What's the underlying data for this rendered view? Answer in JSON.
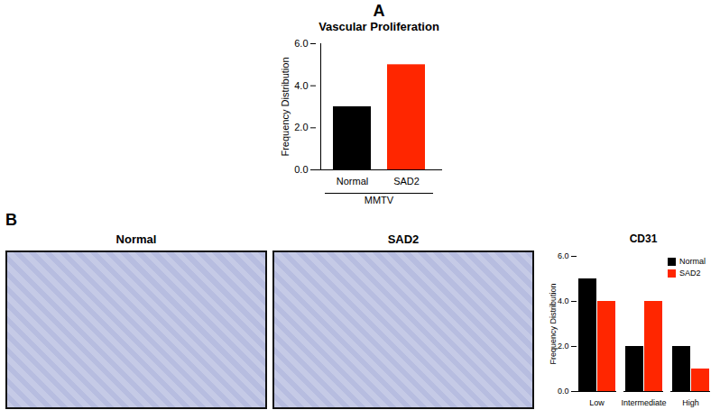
{
  "chart_data": [
    {
      "type": "bar",
      "panel_label": "A",
      "title": "Vascular Proliferation",
      "categories": [
        "Normal",
        "SAD2"
      ],
      "values": [
        3,
        5
      ],
      "colors": [
        "#000000",
        "#ff2600"
      ],
      "group_label": "MMTV",
      "y_label": "Frequency Distribution",
      "ylim": [
        0,
        6
      ],
      "yticks": [
        0,
        2,
        4,
        6
      ]
    },
    {
      "type": "bar",
      "panel_label": "B",
      "title": "CD31",
      "categories": [
        "Low",
        "Intermediate",
        "High"
      ],
      "series": [
        {
          "name": "Normal",
          "color": "#000000",
          "values": [
            5,
            2,
            2
          ]
        },
        {
          "name": "SAD2",
          "color": "#ff2600",
          "values": [
            4,
            4,
            1
          ]
        }
      ],
      "y_label": "Frequency Distribution",
      "ylim": [
        0,
        6
      ],
      "yticks": [
        0,
        2,
        4,
        6
      ],
      "legend": "top-right"
    }
  ],
  "image_panels": [
    {
      "title": "Normal"
    },
    {
      "title": "SAD2"
    }
  ]
}
